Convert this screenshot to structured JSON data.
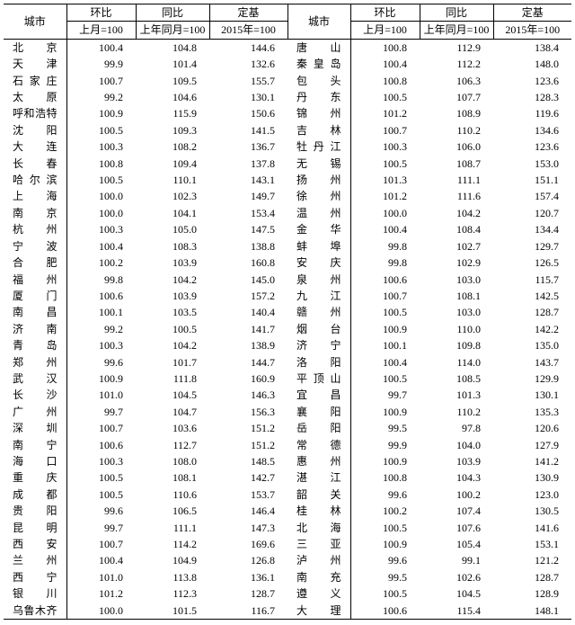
{
  "headers": {
    "city": "城市",
    "hb": "环比",
    "tb": "同比",
    "dj": "定基",
    "sub_hb": "上月=100",
    "sub_tb": "上年同月=100",
    "sub_dj": "2015年=100"
  },
  "left": [
    {
      "c": "北　　京",
      "v": [
        "100.4",
        "104.8",
        "144.6"
      ]
    },
    {
      "c": "天　　津",
      "v": [
        "99.9",
        "101.4",
        "132.6"
      ]
    },
    {
      "c": "石 家 庄",
      "v": [
        "100.7",
        "109.5",
        "155.7"
      ]
    },
    {
      "c": "太　　原",
      "v": [
        "99.2",
        "104.6",
        "130.1"
      ]
    },
    {
      "c": "呼和浩特",
      "v": [
        "100.9",
        "115.9",
        "150.6"
      ]
    },
    {
      "c": "沈　　阳",
      "v": [
        "100.5",
        "109.3",
        "141.5"
      ]
    },
    {
      "c": "大　　连",
      "v": [
        "100.3",
        "108.2",
        "136.7"
      ]
    },
    {
      "c": "长　　春",
      "v": [
        "100.8",
        "109.4",
        "137.8"
      ]
    },
    {
      "c": "哈 尔 滨",
      "v": [
        "100.5",
        "110.1",
        "143.1"
      ]
    },
    {
      "c": "上　　海",
      "v": [
        "100.0",
        "102.3",
        "149.7"
      ]
    },
    {
      "c": "南　　京",
      "v": [
        "100.0",
        "104.1",
        "153.4"
      ]
    },
    {
      "c": "杭　　州",
      "v": [
        "100.3",
        "105.0",
        "147.5"
      ]
    },
    {
      "c": "宁　　波",
      "v": [
        "100.4",
        "108.3",
        "138.8"
      ]
    },
    {
      "c": "合　　肥",
      "v": [
        "100.2",
        "103.9",
        "160.8"
      ]
    },
    {
      "c": "福　　州",
      "v": [
        "99.8",
        "104.2",
        "145.0"
      ]
    },
    {
      "c": "厦　　门",
      "v": [
        "100.6",
        "103.9",
        "157.2"
      ]
    },
    {
      "c": "南　　昌",
      "v": [
        "100.1",
        "103.5",
        "140.4"
      ]
    },
    {
      "c": "济　　南",
      "v": [
        "99.2",
        "100.5",
        "141.7"
      ]
    },
    {
      "c": "青　　岛",
      "v": [
        "100.3",
        "104.2",
        "138.9"
      ]
    },
    {
      "c": "郑　　州",
      "v": [
        "99.6",
        "101.7",
        "144.7"
      ]
    },
    {
      "c": "武　　汉",
      "v": [
        "100.9",
        "111.8",
        "160.9"
      ]
    },
    {
      "c": "长　　沙",
      "v": [
        "101.0",
        "104.5",
        "146.3"
      ]
    },
    {
      "c": "广　　州",
      "v": [
        "99.7",
        "104.7",
        "156.3"
      ]
    },
    {
      "c": "深　　圳",
      "v": [
        "100.7",
        "103.6",
        "151.2"
      ]
    },
    {
      "c": "南　　宁",
      "v": [
        "100.6",
        "112.7",
        "151.2"
      ]
    },
    {
      "c": "海　　口",
      "v": [
        "100.3",
        "108.0",
        "148.5"
      ]
    },
    {
      "c": "重　　庆",
      "v": [
        "100.5",
        "108.1",
        "142.7"
      ]
    },
    {
      "c": "成　　都",
      "v": [
        "100.5",
        "110.6",
        "153.7"
      ]
    },
    {
      "c": "贵　　阳",
      "v": [
        "99.6",
        "106.5",
        "146.4"
      ]
    },
    {
      "c": "昆　　明",
      "v": [
        "99.7",
        "111.1",
        "147.3"
      ]
    },
    {
      "c": "西　　安",
      "v": [
        "100.7",
        "114.2",
        "169.6"
      ]
    },
    {
      "c": "兰　　州",
      "v": [
        "100.4",
        "104.9",
        "126.8"
      ]
    },
    {
      "c": "西　　宁",
      "v": [
        "101.0",
        "113.8",
        "136.1"
      ]
    },
    {
      "c": "银　　川",
      "v": [
        "101.2",
        "112.3",
        "128.7"
      ]
    },
    {
      "c": "乌鲁木齐",
      "v": [
        "100.0",
        "101.5",
        "116.7"
      ]
    }
  ],
  "right": [
    {
      "c": "唐　　山",
      "v": [
        "100.8",
        "112.9",
        "138.4"
      ]
    },
    {
      "c": "秦 皇 岛",
      "v": [
        "100.4",
        "112.2",
        "148.0"
      ]
    },
    {
      "c": "包　　头",
      "v": [
        "100.8",
        "106.3",
        "123.6"
      ]
    },
    {
      "c": "丹　　东",
      "v": [
        "100.5",
        "107.7",
        "128.3"
      ]
    },
    {
      "c": "锦　　州",
      "v": [
        "101.2",
        "108.9",
        "119.6"
      ]
    },
    {
      "c": "吉　　林",
      "v": [
        "100.7",
        "110.2",
        "134.6"
      ]
    },
    {
      "c": "牡 丹 江",
      "v": [
        "100.3",
        "106.0",
        "123.6"
      ]
    },
    {
      "c": "无　　锡",
      "v": [
        "100.5",
        "108.7",
        "153.0"
      ]
    },
    {
      "c": "扬　　州",
      "v": [
        "101.3",
        "111.1",
        "151.1"
      ]
    },
    {
      "c": "徐　　州",
      "v": [
        "101.2",
        "111.6",
        "157.4"
      ]
    },
    {
      "c": "温　　州",
      "v": [
        "100.0",
        "104.2",
        "120.7"
      ]
    },
    {
      "c": "金　　华",
      "v": [
        "100.4",
        "108.4",
        "134.4"
      ]
    },
    {
      "c": "蚌　　埠",
      "v": [
        "99.8",
        "102.7",
        "129.7"
      ]
    },
    {
      "c": "安　　庆",
      "v": [
        "99.8",
        "102.9",
        "126.5"
      ]
    },
    {
      "c": "泉　　州",
      "v": [
        "100.6",
        "103.0",
        "115.7"
      ]
    },
    {
      "c": "九　　江",
      "v": [
        "100.7",
        "108.1",
        "142.5"
      ]
    },
    {
      "c": "赣　　州",
      "v": [
        "100.5",
        "103.0",
        "128.7"
      ]
    },
    {
      "c": "烟　　台",
      "v": [
        "100.9",
        "110.0",
        "142.2"
      ]
    },
    {
      "c": "济　　宁",
      "v": [
        "100.1",
        "109.8",
        "135.0"
      ]
    },
    {
      "c": "洛　　阳",
      "v": [
        "100.4",
        "114.0",
        "143.7"
      ]
    },
    {
      "c": "平 顶 山",
      "v": [
        "100.5",
        "108.5",
        "129.9"
      ]
    },
    {
      "c": "宜　　昌",
      "v": [
        "99.7",
        "101.3",
        "130.1"
      ]
    },
    {
      "c": "襄　　阳",
      "v": [
        "100.9",
        "110.2",
        "135.3"
      ]
    },
    {
      "c": "岳　　阳",
      "v": [
        "99.5",
        "97.8",
        "120.6"
      ]
    },
    {
      "c": "常　　德",
      "v": [
        "99.9",
        "104.0",
        "127.9"
      ]
    },
    {
      "c": "惠　　州",
      "v": [
        "100.9",
        "103.9",
        "141.2"
      ]
    },
    {
      "c": "湛　　江",
      "v": [
        "100.8",
        "104.3",
        "130.9"
      ]
    },
    {
      "c": "韶　　关",
      "v": [
        "99.6",
        "100.2",
        "123.0"
      ]
    },
    {
      "c": "桂　　林",
      "v": [
        "100.2",
        "107.4",
        "130.5"
      ]
    },
    {
      "c": "北　　海",
      "v": [
        "100.5",
        "107.6",
        "141.6"
      ]
    },
    {
      "c": "三　　亚",
      "v": [
        "100.9",
        "105.4",
        "153.1"
      ]
    },
    {
      "c": "泸　　州",
      "v": [
        "99.6",
        "99.1",
        "121.2"
      ]
    },
    {
      "c": "南　　充",
      "v": [
        "99.5",
        "102.6",
        "128.7"
      ]
    },
    {
      "c": "遵　　义",
      "v": [
        "100.5",
        "104.5",
        "128.9"
      ]
    },
    {
      "c": "大　　理",
      "v": [
        "100.6",
        "115.4",
        "148.1"
      ]
    }
  ]
}
